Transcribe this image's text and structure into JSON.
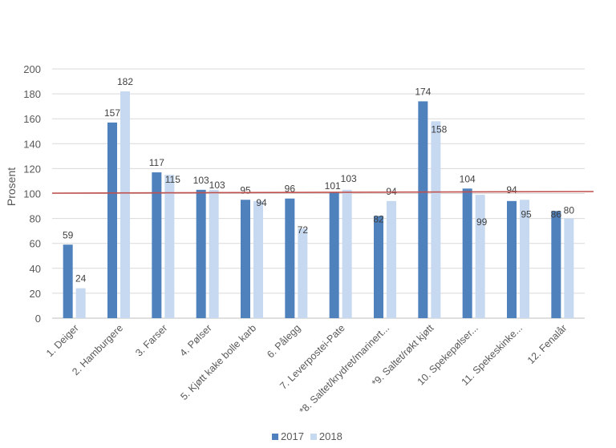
{
  "chart_data": {
    "type": "bar",
    "title": "",
    "xlabel": "",
    "ylabel": "Prosent",
    "ylim": [
      0,
      200
    ],
    "yticks": [
      0,
      20,
      40,
      60,
      80,
      100,
      120,
      140,
      160,
      180,
      200
    ],
    "grid": true,
    "legend_position": "bottom",
    "categories": [
      "1. Deiger",
      "2. Hamburgere",
      "3. Farser",
      "4. Pølser",
      "5. Kjøtt kake bolle karb",
      "6. Pålegg",
      "7. Leverpostei-Pate",
      "*8. Saltet/krydret/marinert...",
      "*9. Saltet/røkt kjøtt",
      "10. Spekepølser...",
      "11. Spekeskinke...",
      "12. Fenalår"
    ],
    "series": [
      {
        "name": "2017",
        "color": "#4f81bd",
        "values": [
          59,
          157,
          117,
          103,
          95,
          96,
          101,
          82,
          174,
          104,
          94,
          86
        ]
      },
      {
        "name": "2018",
        "color": "#c6d9f1",
        "values": [
          24,
          182,
          115,
          103,
          94,
          72,
          103,
          94,
          158,
          99,
          95,
          80
        ]
      }
    ],
    "reference_line": {
      "value": 100,
      "color": "#c0504d"
    }
  },
  "legend": {
    "items": [
      {
        "label": "2017",
        "color": "#4f81bd"
      },
      {
        "label": "2018",
        "color": "#c6d9f1"
      }
    ]
  }
}
